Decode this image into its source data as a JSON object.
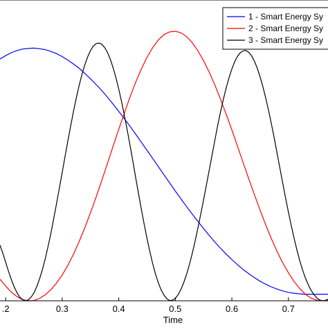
{
  "chart_data": {
    "type": "line",
    "title": "",
    "xlabel": "Time",
    "ylabel": "",
    "xlim": [
      0.19,
      0.77
    ],
    "ylim": [
      0,
      1
    ],
    "xticks": [
      0.2,
      0.3,
      0.4,
      0.5,
      0.6,
      0.7
    ],
    "xtick_labels": [
      ".2",
      "0.3",
      "0.4",
      "0.5",
      "0.6",
      "0.7"
    ],
    "grid": false,
    "legend_position": "top-right",
    "series": [
      {
        "name": "1 - Smart Energy Sy",
        "color": "#0000ff",
        "x": [
          0.19,
          0.2,
          0.21,
          0.22,
          0.23,
          0.24,
          0.25,
          0.26,
          0.27,
          0.28,
          0.29,
          0.3,
          0.31,
          0.32,
          0.33,
          0.34,
          0.35,
          0.36,
          0.37,
          0.38,
          0.39,
          0.4,
          0.41,
          0.42,
          0.43,
          0.44,
          0.45,
          0.46,
          0.47,
          0.48,
          0.49,
          0.5,
          0.51,
          0.52,
          0.53,
          0.54,
          0.55,
          0.56,
          0.57,
          0.58,
          0.59,
          0.6,
          0.61,
          0.62,
          0.63,
          0.64,
          0.65,
          0.66,
          0.67,
          0.68,
          0.69,
          0.7,
          0.71,
          0.72,
          0.73,
          0.74,
          0.75,
          0.76,
          0.77
        ],
        "y": [
          0.804,
          0.815,
          0.825,
          0.832,
          0.837,
          0.839,
          0.84,
          0.838,
          0.835,
          0.829,
          0.822,
          0.812,
          0.8,
          0.787,
          0.773,
          0.756,
          0.738,
          0.719,
          0.699,
          0.677,
          0.654,
          0.63,
          0.605,
          0.58,
          0.554,
          0.527,
          0.5,
          0.473,
          0.446,
          0.419,
          0.392,
          0.365,
          0.339,
          0.313,
          0.288,
          0.264,
          0.24,
          0.217,
          0.195,
          0.175,
          0.155,
          0.137,
          0.12,
          0.104,
          0.09,
          0.077,
          0.065,
          0.055,
          0.046,
          0.039,
          0.033,
          0.028,
          0.025,
          0.023,
          0.022,
          0.022,
          0.022,
          0.022,
          0.022
        ]
      },
      {
        "name": "2 - Smart Energy Sy",
        "color": "#ff0000",
        "x": [
          0.19,
          0.2,
          0.21,
          0.22,
          0.23,
          0.24,
          0.25,
          0.26,
          0.27,
          0.28,
          0.29,
          0.3,
          0.31,
          0.32,
          0.33,
          0.34,
          0.35,
          0.36,
          0.37,
          0.38,
          0.39,
          0.4,
          0.41,
          0.42,
          0.43,
          0.44,
          0.45,
          0.46,
          0.47,
          0.48,
          0.49,
          0.5,
          0.51,
          0.52,
          0.53,
          0.54,
          0.55,
          0.56,
          0.57,
          0.58,
          0.59,
          0.6,
          0.61,
          0.62,
          0.63,
          0.64,
          0.65,
          0.66,
          0.67,
          0.68,
          0.69,
          0.7,
          0.71,
          0.72,
          0.73,
          0.74,
          0.75,
          0.76,
          0.77
        ],
        "y": [
          0.072,
          0.049,
          0.029,
          0.014,
          0.004,
          0.0,
          0.001,
          0.008,
          0.02,
          0.037,
          0.059,
          0.086,
          0.118,
          0.155,
          0.197,
          0.243,
          0.293,
          0.345,
          0.4,
          0.457,
          0.514,
          0.57,
          0.625,
          0.678,
          0.727,
          0.771,
          0.81,
          0.842,
          0.867,
          0.885,
          0.894,
          0.896,
          0.891,
          0.878,
          0.858,
          0.831,
          0.798,
          0.76,
          0.717,
          0.67,
          0.62,
          0.568,
          0.514,
          0.459,
          0.405,
          0.352,
          0.301,
          0.252,
          0.206,
          0.164,
          0.126,
          0.093,
          0.064,
          0.041,
          0.022,
          0.009,
          0.002,
          0.0,
          0.003
        ]
      },
      {
        "name": "3 - Smart Energy Sy",
        "color": "#000000",
        "x": [
          0.19,
          0.195,
          0.2,
          0.205,
          0.21,
          0.215,
          0.22,
          0.225,
          0.23,
          0.235,
          0.24,
          0.245,
          0.25,
          0.255,
          0.26,
          0.265,
          0.27,
          0.275,
          0.28,
          0.285,
          0.29,
          0.295,
          0.3,
          0.305,
          0.31,
          0.315,
          0.32,
          0.325,
          0.33,
          0.335,
          0.34,
          0.345,
          0.35,
          0.355,
          0.36,
          0.365,
          0.37,
          0.375,
          0.38,
          0.385,
          0.39,
          0.395,
          0.4,
          0.405,
          0.41,
          0.415,
          0.42,
          0.425,
          0.43,
          0.435,
          0.44,
          0.445,
          0.45,
          0.455,
          0.46,
          0.465,
          0.47,
          0.475,
          0.48,
          0.485,
          0.49,
          0.495,
          0.5,
          0.505,
          0.51,
          0.515,
          0.52,
          0.525,
          0.53,
          0.535,
          0.54,
          0.545,
          0.55,
          0.555,
          0.56,
          0.565,
          0.57,
          0.575,
          0.58,
          0.585,
          0.59,
          0.595,
          0.6,
          0.605,
          0.61,
          0.615,
          0.62,
          0.625,
          0.63,
          0.635,
          0.64,
          0.645,
          0.65,
          0.655,
          0.66,
          0.665,
          0.67,
          0.675,
          0.68,
          0.685,
          0.69,
          0.695,
          0.7,
          0.705,
          0.71,
          0.715,
          0.72,
          0.725,
          0.73,
          0.735,
          0.74,
          0.745,
          0.75,
          0.755,
          0.76,
          0.765,
          0.77
        ],
        "y": [
          0.185,
          0.158,
          0.128,
          0.098,
          0.071,
          0.047,
          0.027,
          0.012,
          0.004,
          0.0,
          0.003,
          0.012,
          0.026,
          0.047,
          0.073,
          0.104,
          0.14,
          0.181,
          0.225,
          0.273,
          0.323,
          0.375,
          0.427,
          0.48,
          0.532,
          0.582,
          0.63,
          0.675,
          0.716,
          0.753,
          0.785,
          0.811,
          0.832,
          0.847,
          0.855,
          0.857,
          0.853,
          0.842,
          0.826,
          0.803,
          0.775,
          0.742,
          0.704,
          0.662,
          0.616,
          0.567,
          0.516,
          0.463,
          0.409,
          0.356,
          0.304,
          0.254,
          0.207,
          0.163,
          0.123,
          0.089,
          0.06,
          0.036,
          0.019,
          0.007,
          0.001,
          0.002,
          0.008,
          0.02,
          0.038,
          0.061,
          0.089,
          0.121,
          0.158,
          0.198,
          0.242,
          0.288,
          0.336,
          0.385,
          0.435,
          0.485,
          0.535,
          0.583,
          0.628,
          0.67,
          0.708,
          0.742,
          0.771,
          0.795,
          0.813,
          0.825,
          0.831,
          0.832,
          0.826,
          0.814,
          0.796,
          0.773,
          0.744,
          0.711,
          0.673,
          0.632,
          0.587,
          0.54,
          0.491,
          0.441,
          0.391,
          0.342,
          0.295,
          0.25,
          0.208,
          0.169,
          0.134,
          0.103,
          0.076,
          0.054,
          0.035,
          0.021,
          0.01,
          0.003,
          0.0,
          0.001,
          0.005
        ]
      }
    ]
  }
}
